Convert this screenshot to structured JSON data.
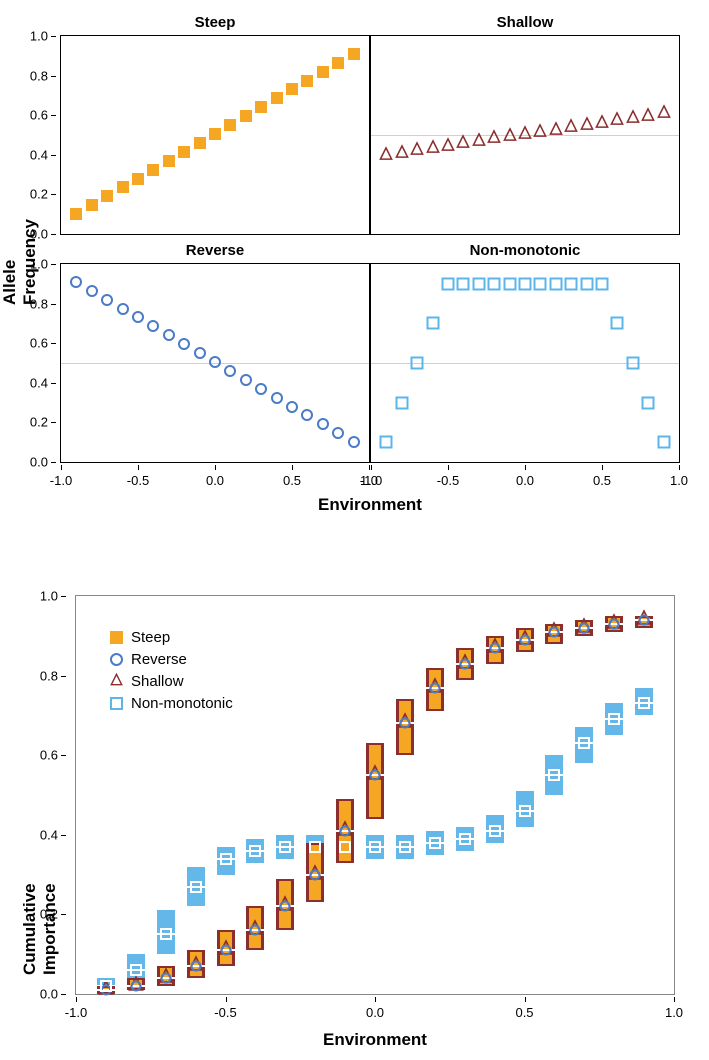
{
  "colors": {
    "steep": "#f5a623",
    "reverse": "#4a7bc8",
    "shallow": "#8b2e2e",
    "nonmono": "#5bb5e8",
    "refline": "#d0d0d0",
    "bg": "#ffffff"
  },
  "top": {
    "ylabel": "Allele Frequency",
    "xlabel": "Environment",
    "xlim": [
      -1.0,
      1.0
    ],
    "ylim": [
      0.0,
      1.0
    ],
    "xticks": [
      -1.0,
      -0.5,
      0.0,
      0.5,
      1.0
    ],
    "yticks": [
      0.0,
      0.2,
      0.4,
      0.6,
      0.8,
      1.0
    ],
    "panels": [
      {
        "key": "steep",
        "title": "Steep",
        "marker": "filled-square",
        "color": "#f5a623",
        "size": 12,
        "refline": null,
        "x": [
          -0.9,
          -0.8,
          -0.7,
          -0.6,
          -0.5,
          -0.4,
          -0.3,
          -0.2,
          -0.1,
          0.0,
          0.1,
          0.2,
          0.3,
          0.4,
          0.5,
          0.6,
          0.7,
          0.8,
          0.9
        ],
        "y": [
          0.1,
          0.145,
          0.19,
          0.235,
          0.28,
          0.325,
          0.37,
          0.415,
          0.46,
          0.505,
          0.55,
          0.595,
          0.64,
          0.685,
          0.73,
          0.775,
          0.82,
          0.865,
          0.91
        ]
      },
      {
        "key": "shallow",
        "title": "Shallow",
        "marker": "open-triangle",
        "color": "#8b2e2e",
        "size": 14,
        "refline": 0.5,
        "x": [
          -0.9,
          -0.8,
          -0.7,
          -0.6,
          -0.5,
          -0.4,
          -0.3,
          -0.2,
          -0.1,
          0.0,
          0.1,
          0.2,
          0.3,
          0.4,
          0.5,
          0.6,
          0.7,
          0.8,
          0.9
        ],
        "y": [
          0.395,
          0.405,
          0.42,
          0.43,
          0.44,
          0.455,
          0.465,
          0.48,
          0.49,
          0.5,
          0.51,
          0.52,
          0.535,
          0.545,
          0.555,
          0.57,
          0.58,
          0.59,
          0.605
        ]
      },
      {
        "key": "reverse",
        "title": "Reverse",
        "marker": "open-circle",
        "color": "#4a7bc8",
        "size": 12,
        "refline": 0.5,
        "x": [
          -0.9,
          -0.8,
          -0.7,
          -0.6,
          -0.5,
          -0.4,
          -0.3,
          -0.2,
          -0.1,
          0.0,
          0.1,
          0.2,
          0.3,
          0.4,
          0.5,
          0.6,
          0.7,
          0.8,
          0.9
        ],
        "y": [
          0.91,
          0.865,
          0.82,
          0.775,
          0.73,
          0.685,
          0.64,
          0.595,
          0.55,
          0.505,
          0.46,
          0.415,
          0.37,
          0.325,
          0.28,
          0.235,
          0.19,
          0.145,
          0.1
        ]
      },
      {
        "key": "nonmono",
        "title": "Non-monotonic",
        "marker": "open-square",
        "color": "#5bb5e8",
        "size": 13,
        "refline": 0.5,
        "x": [
          -0.9,
          -0.8,
          -0.7,
          -0.6,
          -0.5,
          -0.4,
          -0.3,
          -0.2,
          -0.1,
          0.0,
          0.1,
          0.2,
          0.3,
          0.4,
          0.5,
          0.6,
          0.7,
          0.8,
          0.9
        ],
        "y": [
          0.1,
          0.3,
          0.5,
          0.7,
          0.9,
          0.9,
          0.9,
          0.9,
          0.9,
          0.9,
          0.9,
          0.9,
          0.9,
          0.9,
          0.9,
          0.7,
          0.5,
          0.3,
          0.1
        ]
      }
    ]
  },
  "bottom": {
    "ylabel": "Cumulative Importance",
    "xlabel": "Environment",
    "xlim": [
      -1.0,
      1.0
    ],
    "ylim": [
      0.0,
      1.0
    ],
    "xticks": [
      -1.0,
      -0.5,
      0.0,
      0.5,
      1.0
    ],
    "yticks": [
      0.0,
      0.2,
      0.4,
      0.6,
      0.8,
      1.0
    ],
    "legend": [
      {
        "label": "Steep",
        "marker": "filled-square",
        "color": "#f5a623"
      },
      {
        "label": "Reverse",
        "marker": "open-circle",
        "color": "#4a7bc8"
      },
      {
        "label": "Shallow",
        "marker": "open-triangle",
        "color": "#8b2e2e"
      },
      {
        "label": "Non-monotonic",
        "marker": "open-square",
        "color": "#5bb5e8"
      }
    ],
    "x": [
      -0.9,
      -0.8,
      -0.7,
      -0.6,
      -0.5,
      -0.4,
      -0.3,
      -0.2,
      -0.1,
      0.0,
      0.1,
      0.2,
      0.3,
      0.4,
      0.5,
      0.6,
      0.7,
      0.8,
      0.9
    ],
    "series": {
      "main_median": [
        0.01,
        0.02,
        0.04,
        0.07,
        0.11,
        0.16,
        0.22,
        0.3,
        0.41,
        0.55,
        0.68,
        0.77,
        0.83,
        0.87,
        0.89,
        0.91,
        0.92,
        0.93,
        0.94
      ],
      "main_low": [
        0.0,
        0.01,
        0.02,
        0.04,
        0.07,
        0.11,
        0.16,
        0.23,
        0.33,
        0.44,
        0.6,
        0.71,
        0.79,
        0.83,
        0.86,
        0.88,
        0.9,
        0.91,
        0.92
      ],
      "main_high": [
        0.02,
        0.04,
        0.07,
        0.11,
        0.16,
        0.22,
        0.29,
        0.38,
        0.49,
        0.63,
        0.74,
        0.82,
        0.87,
        0.9,
        0.92,
        0.93,
        0.94,
        0.95,
        0.95
      ],
      "nonmono_median": [
        0.02,
        0.06,
        0.15,
        0.27,
        0.34,
        0.36,
        0.37,
        0.37,
        0.37,
        0.37,
        0.37,
        0.38,
        0.39,
        0.41,
        0.46,
        0.55,
        0.63,
        0.69,
        0.73
      ],
      "nonmono_low": [
        0.01,
        0.03,
        0.1,
        0.22,
        0.3,
        0.33,
        0.34,
        0.34,
        0.34,
        0.34,
        0.34,
        0.35,
        0.36,
        0.38,
        0.42,
        0.5,
        0.58,
        0.65,
        0.7
      ],
      "nonmono_high": [
        0.04,
        0.1,
        0.21,
        0.32,
        0.37,
        0.39,
        0.4,
        0.4,
        0.4,
        0.4,
        0.4,
        0.41,
        0.42,
        0.45,
        0.51,
        0.6,
        0.67,
        0.73,
        0.77
      ]
    }
  }
}
